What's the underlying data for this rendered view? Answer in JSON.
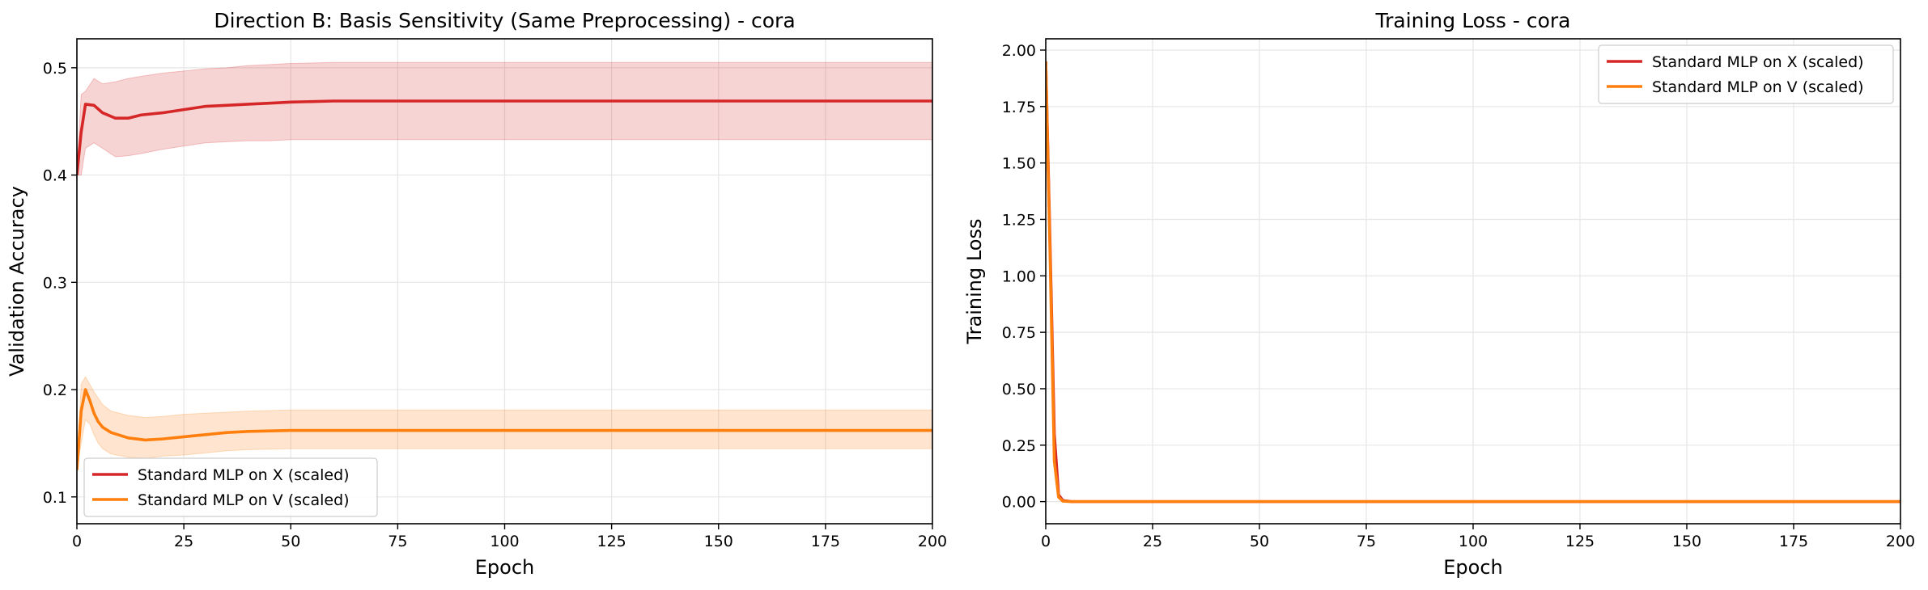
{
  "chart_data": [
    {
      "type": "line",
      "title": "Direction B: Basis Sensitivity (Same Preprocessing) - cora",
      "xlabel": "Epoch",
      "ylabel": "Validation Accuracy",
      "xlim": [
        0,
        200
      ],
      "ylim": [
        0.075,
        0.527
      ],
      "xticks": [
        0,
        25,
        50,
        75,
        100,
        125,
        150,
        175,
        200
      ],
      "yticks": [
        0.1,
        0.2,
        0.3,
        0.4,
        0.5
      ],
      "grid": true,
      "legend_position": "lower left",
      "series": [
        {
          "name": "Standard MLP on X (scaled)",
          "color": "#d62728",
          "band": true,
          "points": [
            [
              0,
              0.4,
              0.4,
              0.4
            ],
            [
              1,
              0.44,
              0.4,
              0.475
            ],
            [
              2,
              0.466,
              0.425,
              0.478
            ],
            [
              4,
              0.465,
              0.43,
              0.49
            ],
            [
              6,
              0.458,
              0.425,
              0.485
            ],
            [
              9,
              0.453,
              0.417,
              0.487
            ],
            [
              12,
              0.453,
              0.418,
              0.49
            ],
            [
              15,
              0.456,
              0.42,
              0.492
            ],
            [
              20,
              0.458,
              0.424,
              0.495
            ],
            [
              25,
              0.461,
              0.427,
              0.497
            ],
            [
              30,
              0.464,
              0.43,
              0.499
            ],
            [
              35,
              0.465,
              0.431,
              0.5
            ],
            [
              40,
              0.466,
              0.432,
              0.502
            ],
            [
              45,
              0.467,
              0.432,
              0.503
            ],
            [
              50,
              0.468,
              0.433,
              0.504
            ],
            [
              60,
              0.469,
              0.433,
              0.505
            ],
            [
              70,
              0.469,
              0.433,
              0.505
            ],
            [
              100,
              0.469,
              0.433,
              0.505
            ],
            [
              150,
              0.469,
              0.433,
              0.505
            ],
            [
              200,
              0.469,
              0.433,
              0.505
            ]
          ]
        },
        {
          "name": "Standard MLP on V (scaled)",
          "color": "#ff7f0e",
          "band": true,
          "points": [
            [
              0,
              0.125,
              0.125,
              0.125
            ],
            [
              1,
              0.18,
              0.15,
              0.205
            ],
            [
              2,
              0.2,
              0.172,
              0.212
            ],
            [
              3,
              0.19,
              0.168,
              0.205
            ],
            [
              4,
              0.178,
              0.158,
              0.198
            ],
            [
              5,
              0.17,
              0.15,
              0.192
            ],
            [
              6,
              0.165,
              0.145,
              0.186
            ],
            [
              8,
              0.16,
              0.14,
              0.18
            ],
            [
              12,
              0.155,
              0.137,
              0.176
            ],
            [
              16,
              0.153,
              0.136,
              0.174
            ],
            [
              20,
              0.154,
              0.138,
              0.175
            ],
            [
              25,
              0.156,
              0.139,
              0.177
            ],
            [
              30,
              0.158,
              0.141,
              0.178
            ],
            [
              35,
              0.16,
              0.143,
              0.179
            ],
            [
              40,
              0.161,
              0.144,
              0.18
            ],
            [
              50,
              0.162,
              0.145,
              0.181
            ],
            [
              60,
              0.162,
              0.145,
              0.181
            ],
            [
              80,
              0.162,
              0.145,
              0.181
            ],
            [
              100,
              0.162,
              0.145,
              0.181
            ],
            [
              150,
              0.162,
              0.145,
              0.181
            ],
            [
              200,
              0.162,
              0.145,
              0.181
            ]
          ]
        }
      ]
    },
    {
      "type": "line",
      "title": "Training Loss - cora",
      "xlabel": "Epoch",
      "ylabel": "Training Loss",
      "xlim": [
        0,
        200
      ],
      "ylim": [
        -0.098,
        2.05
      ],
      "xticks": [
        0,
        25,
        50,
        75,
        100,
        125,
        150,
        175,
        200
      ],
      "yticks": [
        0.0,
        0.25,
        0.5,
        0.75,
        1.0,
        1.25,
        1.5,
        1.75,
        2.0
      ],
      "ytick_labels": [
        "0.00",
        "0.25",
        "0.50",
        "0.75",
        "1.00",
        "1.25",
        "1.50",
        "1.75",
        "2.00"
      ],
      "grid": true,
      "legend_position": "upper right",
      "series": [
        {
          "name": "Standard MLP on X (scaled)",
          "color": "#d62728",
          "points": [
            [
              0,
              1.95
            ],
            [
              1,
              1.15
            ],
            [
              2,
              0.3
            ],
            [
              3,
              0.03
            ],
            [
              4,
              0.005
            ],
            [
              6,
              0.0
            ],
            [
              200,
              0.0
            ]
          ]
        },
        {
          "name": "Standard MLP on V (scaled)",
          "color": "#ff7f0e",
          "points": [
            [
              0,
              1.95
            ],
            [
              1,
              1.1
            ],
            [
              2,
              0.18
            ],
            [
              3,
              0.02
            ],
            [
              4,
              0.002
            ],
            [
              6,
              0.0
            ],
            [
              200,
              0.0
            ]
          ]
        }
      ]
    }
  ]
}
